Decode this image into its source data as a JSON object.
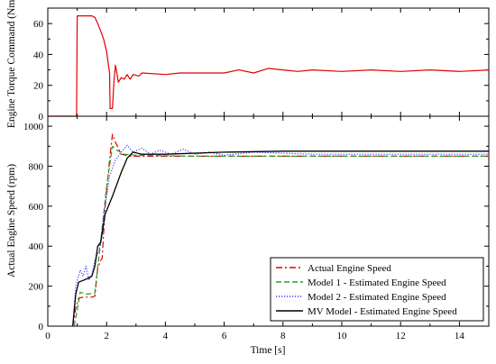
{
  "chart_data": [
    {
      "type": "line",
      "ylabel": "Engine Torque Command (Nm)",
      "xlim": [
        0,
        15
      ],
      "ylim": [
        0,
        70
      ],
      "yticks": [
        0,
        20,
        40,
        60
      ],
      "grid": false,
      "series": [
        {
          "color": "#e00000",
          "style": "solid",
          "values": [
            [
              0,
              0
            ],
            [
              0.98,
              0
            ],
            [
              1.0,
              65
            ],
            [
              1.5,
              65
            ],
            [
              1.6,
              64
            ],
            [
              1.7,
              60
            ],
            [
              1.8,
              55
            ],
            [
              1.9,
              50
            ],
            [
              2.0,
              42
            ],
            [
              2.05,
              35
            ],
            [
              2.1,
              28
            ],
            [
              2.12,
              5
            ],
            [
              2.2,
              5
            ],
            [
              2.25,
              22
            ],
            [
              2.3,
              33
            ],
            [
              2.35,
              28
            ],
            [
              2.4,
              22
            ],
            [
              2.5,
              25
            ],
            [
              2.6,
              24
            ],
            [
              2.7,
              27
            ],
            [
              2.8,
              24
            ],
            [
              2.9,
              27
            ],
            [
              3.1,
              26
            ],
            [
              3.2,
              28
            ],
            [
              4.0,
              27
            ],
            [
              4.5,
              28
            ],
            [
              6.0,
              28
            ],
            [
              6.5,
              30
            ],
            [
              7.0,
              28
            ],
            [
              7.5,
              31
            ],
            [
              8.0,
              30
            ],
            [
              8.5,
              29
            ],
            [
              9.0,
              30
            ],
            [
              10.0,
              29
            ],
            [
              11.0,
              30
            ],
            [
              12.0,
              29
            ],
            [
              13.0,
              30
            ],
            [
              14.0,
              29
            ],
            [
              15.0,
              30
            ]
          ]
        }
      ]
    },
    {
      "type": "line",
      "xlabel": "Time [s]",
      "ylabel": "Actual Engine Speed (rpm)",
      "xlim": [
        0,
        15
      ],
      "ylim": [
        0,
        1050
      ],
      "xticks": [
        0,
        2,
        4,
        6,
        8,
        10,
        12,
        14
      ],
      "yticks": [
        0,
        200,
        400,
        600,
        800,
        1000
      ],
      "grid": false,
      "legend_position": "bottom-right",
      "series": [
        {
          "name": "Actual Engine Speed",
          "color": "#e00000",
          "style": "dashdot",
          "values": [
            [
              0.85,
              0
            ],
            [
              0.95,
              90
            ],
            [
              1.05,
              140
            ],
            [
              1.2,
              145
            ],
            [
              1.5,
              145
            ],
            [
              1.6,
              150
            ],
            [
              1.7,
              290
            ],
            [
              1.8,
              330
            ],
            [
              1.85,
              340
            ],
            [
              1.95,
              600
            ],
            [
              2.1,
              830
            ],
            [
              2.2,
              960
            ],
            [
              2.3,
              920
            ],
            [
              2.5,
              860
            ],
            [
              2.8,
              850
            ],
            [
              3.5,
              850
            ],
            [
              5,
              850
            ],
            [
              8,
              850
            ],
            [
              11,
              850
            ],
            [
              15,
              850
            ]
          ]
        },
        {
          "name": "Model 1 - Estimated Engine Speed",
          "color": "#2e9a2e",
          "style": "dashed",
          "values": [
            [
              0.9,
              0
            ],
            [
              1.05,
              120
            ],
            [
              1.1,
              170
            ],
            [
              1.3,
              160
            ],
            [
              1.6,
              165
            ],
            [
              1.7,
              300
            ],
            [
              1.8,
              420
            ],
            [
              2.0,
              700
            ],
            [
              2.2,
              900
            ],
            [
              2.35,
              880
            ],
            [
              2.6,
              860
            ],
            [
              3.0,
              855
            ],
            [
              5,
              850
            ],
            [
              8,
              850
            ],
            [
              11,
              850
            ],
            [
              15,
              850
            ]
          ]
        },
        {
          "name": "Model 2 - Estimated Engine Speed",
          "color": "#3a3aff",
          "style": "dotted",
          "values": [
            [
              0.85,
              0
            ],
            [
              0.95,
              200
            ],
            [
              1.1,
              280
            ],
            [
              1.2,
              250
            ],
            [
              1.3,
              300
            ],
            [
              1.4,
              230
            ],
            [
              1.5,
              260
            ],
            [
              1.6,
              330
            ],
            [
              1.75,
              380
            ],
            [
              1.9,
              550
            ],
            [
              2.1,
              750
            ],
            [
              2.3,
              830
            ],
            [
              2.5,
              870
            ],
            [
              2.7,
              905
            ],
            [
              2.9,
              870
            ],
            [
              3.2,
              890
            ],
            [
              3.5,
              860
            ],
            [
              3.8,
              880
            ],
            [
              4.2,
              860
            ],
            [
              4.6,
              885
            ],
            [
              5.0,
              860
            ],
            [
              5.5,
              870
            ],
            [
              6.0,
              855
            ],
            [
              7,
              870
            ],
            [
              8,
              865
            ],
            [
              9,
              860
            ],
            [
              10,
              860
            ],
            [
              11,
              860
            ],
            [
              12,
              860
            ],
            [
              13,
              860
            ],
            [
              14,
              860
            ],
            [
              15,
              860
            ]
          ]
        },
        {
          "name": "MV Model - Estimated Engine Speed",
          "color": "#000000",
          "style": "solid",
          "values": [
            [
              0.85,
              0
            ],
            [
              0.95,
              160
            ],
            [
              1.05,
              220
            ],
            [
              1.3,
              235
            ],
            [
              1.5,
              250
            ],
            [
              1.6,
              300
            ],
            [
              1.7,
              400
            ],
            [
              1.8,
              420
            ],
            [
              1.95,
              560
            ],
            [
              2.2,
              650
            ],
            [
              2.5,
              770
            ],
            [
              2.7,
              840
            ],
            [
              2.9,
              870
            ],
            [
              3.2,
              860
            ],
            [
              4,
              860
            ],
            [
              6,
              870
            ],
            [
              8,
              875
            ],
            [
              10,
              875
            ],
            [
              12,
              875
            ],
            [
              15,
              875
            ]
          ]
        }
      ]
    }
  ]
}
